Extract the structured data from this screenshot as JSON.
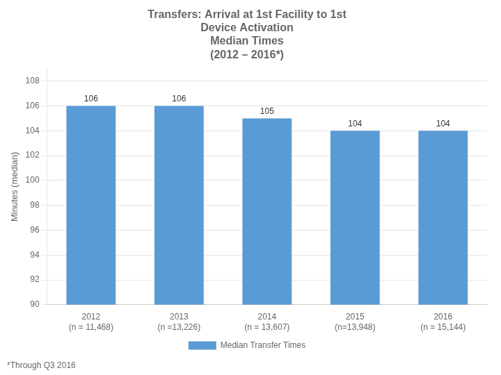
{
  "chart_data": {
    "type": "bar",
    "title": "Transfers: Arrival at 1st Facility to 1st\nDevice Activation\nMedian Times\n(2012 – 2016*)",
    "categories": [
      "2012\n(n = 11,468)",
      "2013\n(n =13,226)",
      "2014\n(n = 13,607)",
      "2015\n(n=13,948)",
      "2016\n(n = 15,144)"
    ],
    "series": [
      {
        "name": "Median Transfer Times",
        "color": "#5B9BD5",
        "values": [
          106,
          106,
          105,
          104,
          104
        ]
      }
    ],
    "ylabel": "Minutes (median)",
    "ylim": [
      90,
      109
    ],
    "yticks": [
      90,
      92,
      94,
      96,
      98,
      100,
      102,
      104,
      106,
      108
    ],
    "grid": true,
    "legend": "bottom",
    "data_labels": true,
    "footnote": "*Through Q3 2016"
  }
}
